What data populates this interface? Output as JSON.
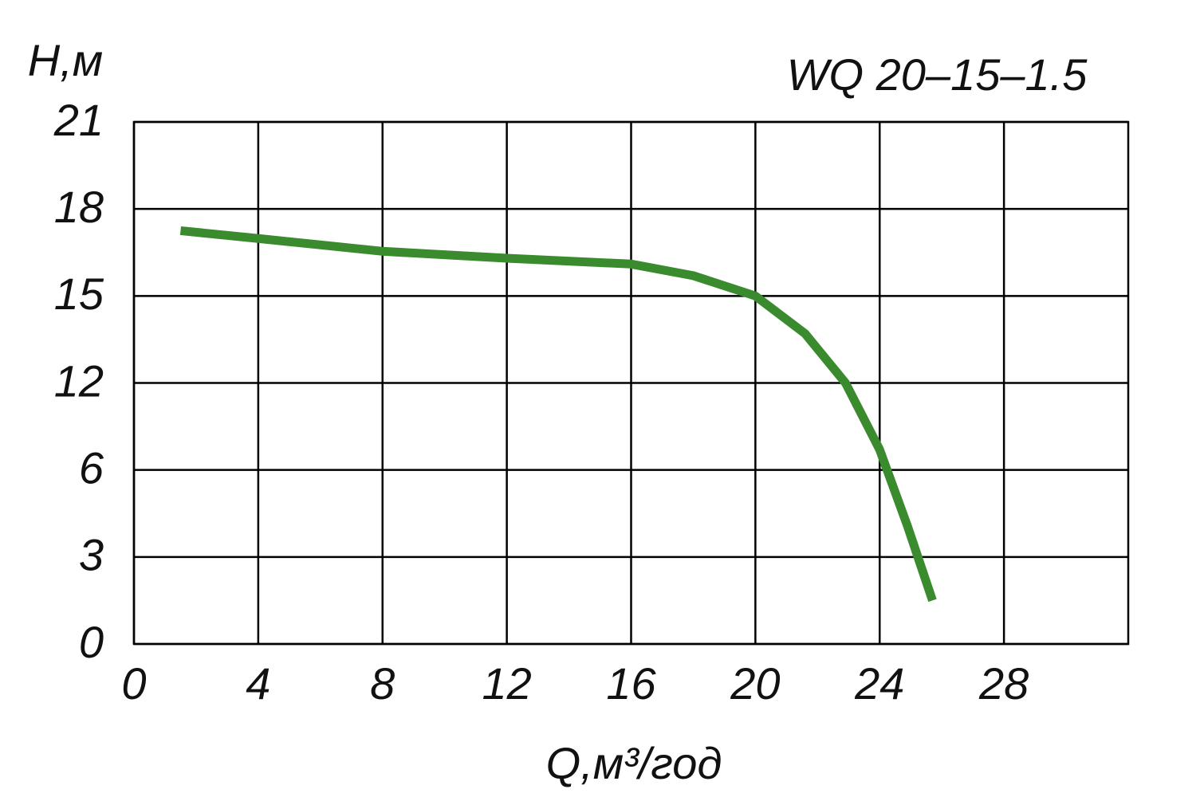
{
  "chart_data": {
    "type": "line",
    "title": "WQ 20–15–1.5",
    "y_label": "H,м",
    "x_label": "Q,м³/год",
    "x": [
      1.5,
      4,
      8,
      12,
      16,
      18,
      20,
      21.6,
      22.9,
      24,
      24.9,
      25.7
    ],
    "series": [
      {
        "color": "#3a8a2e",
        "values": [
          17.25,
          16.98,
          16.54,
          16.3,
          16.1,
          15.7,
          15,
          13.7,
          12,
          7.4,
          4.05,
          1.5
        ]
      }
    ],
    "xlim": [
      0,
      32
    ],
    "xticks": [
      0,
      4,
      8,
      12,
      16,
      20,
      24,
      28
    ],
    "ylim": [
      0,
      21
    ],
    "yticks": [
      0,
      3,
      6,
      12,
      15,
      18,
      21
    ],
    "grid": true
  }
}
